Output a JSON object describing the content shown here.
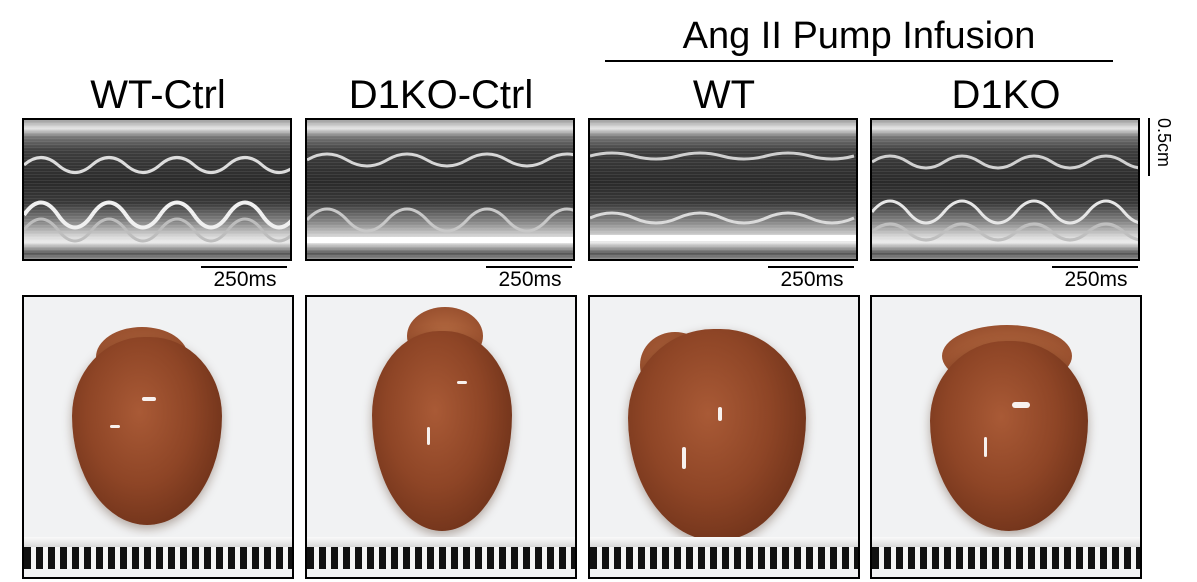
{
  "group_header": {
    "label": "Ang II Pump Infusion"
  },
  "columns": [
    {
      "label": "WT-Ctrl",
      "scale_time": "250ms",
      "heart_icon": "heart-photo-wt-ctrl"
    },
    {
      "label": "D1KO-Ctrl",
      "scale_time": "250ms",
      "heart_icon": "heart-photo-d1ko-ctrl"
    },
    {
      "label": "WT",
      "scale_time": "250ms",
      "heart_icon": "heart-photo-wt-angii"
    },
    {
      "label": "D1KO",
      "scale_time": "250ms",
      "heart_icon": "heart-photo-d1ko-angii"
    }
  ],
  "vertical_scale": {
    "label": "0.5cm"
  },
  "colors": {
    "panel_border": "#000000",
    "heart_tissue": "#8e4526",
    "background": "#ffffff"
  }
}
